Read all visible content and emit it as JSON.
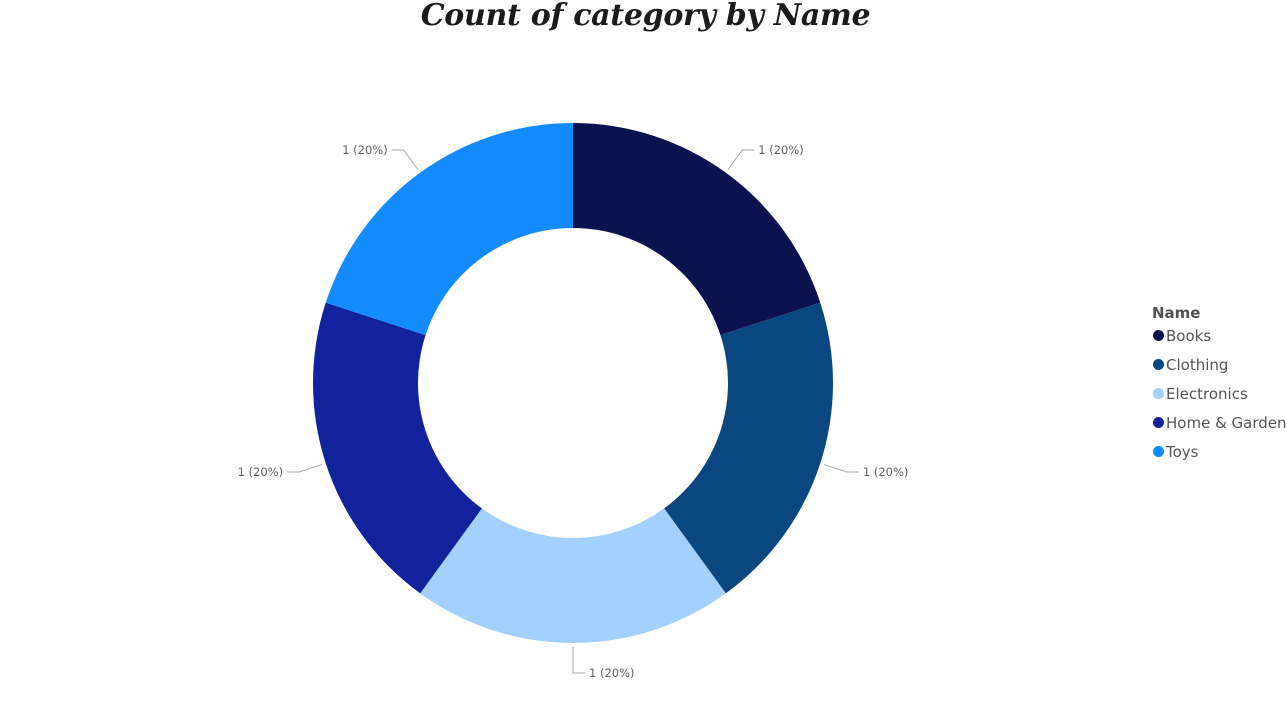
{
  "chart_data": {
    "type": "pie",
    "variant": "donut",
    "title": "Count of category by Name",
    "legend_title": "Name",
    "legend_position": "right",
    "slices": [
      {
        "name": "Books",
        "value": 1,
        "label": "1 (20%)",
        "color": "#0b124e"
      },
      {
        "name": "Clothing",
        "value": 1,
        "label": "1 (20%)",
        "color": "#0a4781"
      },
      {
        "name": "Electronics",
        "value": 1,
        "label": "1 (20%)",
        "color": "#a3d0fd"
      },
      {
        "name": "Home & Garden",
        "value": 1,
        "label": "1 (20%)",
        "color": "#11229c"
      },
      {
        "name": "Toys",
        "value": 1,
        "label": "1 (20%)",
        "color": "#138bff"
      }
    ]
  }
}
